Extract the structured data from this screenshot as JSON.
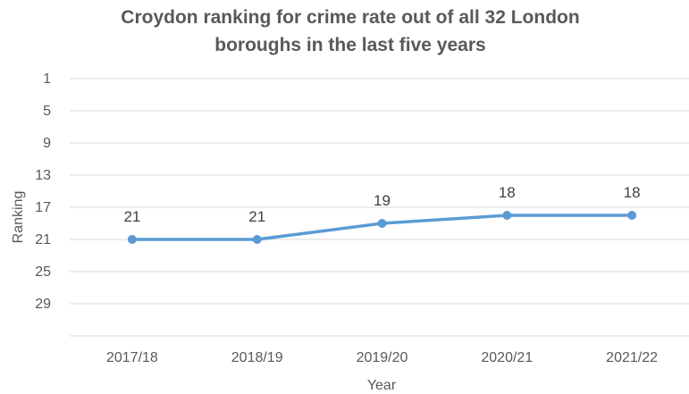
{
  "chart_data": {
    "type": "line",
    "title_lines": [
      "Croydon ranking for crime rate out of all 32 London",
      "boroughs in the last five years"
    ],
    "xlabel": "Year",
    "ylabel": "Ranking",
    "categories": [
      "2017/18",
      "2018/19",
      "2019/20",
      "2020/21",
      "2021/22"
    ],
    "series": [
      {
        "values": [
          21,
          21,
          19,
          18,
          18
        ]
      }
    ],
    "y_ticks": [
      1,
      5,
      9,
      13,
      17,
      21,
      25,
      29
    ],
    "ylim": [
      1,
      33
    ],
    "y_reversed": true,
    "grid": true,
    "legend": "none",
    "colors": {
      "line": "#5B9BD5",
      "grid": "#D9D9D9",
      "text": "#595959"
    }
  }
}
